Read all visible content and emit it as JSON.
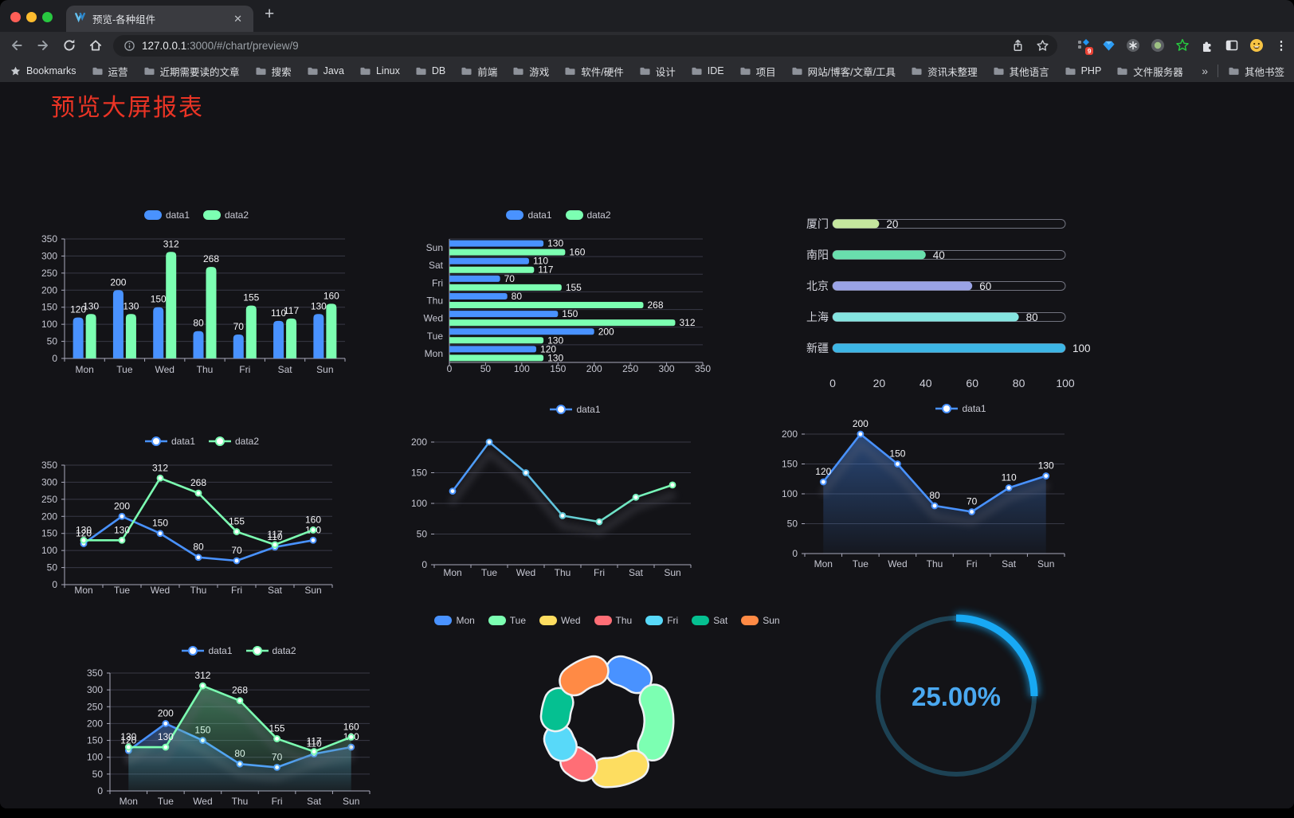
{
  "browser": {
    "tab_title": "预览-各种组件",
    "close_icon": "✕",
    "new_tab_icon": "+",
    "url_host": "127.0.0.1",
    "url_rest": ":3000/#/chart/preview/9",
    "bookmarks_root": "Bookmarks",
    "bookmarks": [
      "运营",
      "近期需要读的文章",
      "搜索",
      "Java",
      "Linux",
      "DB",
      "前端",
      "游戏",
      "软件/硬件",
      "设计",
      "IDE",
      "项目",
      "网站/博客/文章/工具",
      "资讯未整理",
      "其他语言",
      "PHP",
      "文件服务器"
    ],
    "bookmarks_overflow": "»",
    "other_bookmarks": "其他书签",
    "extension_badge": "9",
    "menu_icon": "⋮"
  },
  "page": {
    "title": "预览大屏报表"
  },
  "chart_data": [
    {
      "id": "bar-grouped",
      "type": "bar",
      "categories": [
        "Mon",
        "Tue",
        "Wed",
        "Thu",
        "Fri",
        "Sat",
        "Sun"
      ],
      "series": [
        {
          "name": "data1",
          "color": "#4992ff",
          "values": [
            120,
            200,
            150,
            80,
            70,
            110,
            130
          ]
        },
        {
          "name": "data2",
          "color": "#7cffb2",
          "values": [
            130,
            130,
            312,
            268,
            155,
            117,
            160
          ]
        }
      ],
      "ylim": [
        0,
        350
      ],
      "ytick": 50,
      "show_labels": true,
      "legend_position": "top",
      "grid": true
    },
    {
      "id": "bar-horizontal",
      "type": "hbar",
      "categories": [
        "Mon",
        "Tue",
        "Wed",
        "Thu",
        "Fri",
        "Sat",
        "Sun"
      ],
      "series": [
        {
          "name": "data1",
          "color": "#4992ff",
          "values": [
            120,
            200,
            150,
            80,
            70,
            110,
            130
          ]
        },
        {
          "name": "data2",
          "color": "#7cffb2",
          "values": [
            130,
            130,
            312,
            268,
            155,
            117,
            160
          ]
        }
      ],
      "xlim": [
        0,
        350
      ],
      "xtick": 50,
      "show_labels": true,
      "legend_position": "top",
      "grid": true
    },
    {
      "id": "city-progress",
      "type": "progress",
      "max": 100,
      "axis_ticks": [
        0,
        20,
        40,
        60,
        80,
        100
      ],
      "rows": [
        {
          "label": "厦门",
          "value": 20,
          "color": "#c5e79e"
        },
        {
          "label": "南阳",
          "value": 40,
          "color": "#69dfad"
        },
        {
          "label": "北京",
          "value": 60,
          "color": "#9aa3e6"
        },
        {
          "label": "上海",
          "value": 80,
          "color": "#85e5e1"
        },
        {
          "label": "新疆",
          "value": 100,
          "color": "#3db6e6"
        }
      ]
    },
    {
      "id": "line-two",
      "type": "line",
      "categories": [
        "Mon",
        "Tue",
        "Wed",
        "Thu",
        "Fri",
        "Sat",
        "Sun"
      ],
      "series": [
        {
          "name": "data1",
          "color": "#4992ff",
          "values": [
            120,
            200,
            150,
            80,
            70,
            110,
            130
          ]
        },
        {
          "name": "data2",
          "color": "#7cffb2",
          "values": [
            130,
            130,
            312,
            268,
            155,
            117,
            160
          ]
        }
      ],
      "ylim": [
        0,
        350
      ],
      "ytick": 50,
      "show_labels": true,
      "shadow": false,
      "legend_position": "top",
      "grid": true
    },
    {
      "id": "line-gradient",
      "type": "line",
      "categories": [
        "Mon",
        "Tue",
        "Wed",
        "Thu",
        "Fri",
        "Sat",
        "Sun"
      ],
      "series": [
        {
          "name": "data1",
          "gradient": [
            "#4992ff",
            "#7cffb2"
          ],
          "values": [
            120,
            200,
            150,
            80,
            70,
            110,
            130
          ]
        }
      ],
      "ylim": [
        0,
        200
      ],
      "ytick": 50,
      "show_labels": false,
      "shadow": true,
      "legend_position": "top",
      "grid": true
    },
    {
      "id": "area-single",
      "type": "line",
      "categories": [
        "Mon",
        "Tue",
        "Wed",
        "Thu",
        "Fri",
        "Sat",
        "Sun"
      ],
      "series": [
        {
          "name": "data1",
          "color": "#4992ff",
          "area": true,
          "values": [
            120,
            200,
            150,
            80,
            70,
            110,
            130
          ]
        }
      ],
      "ylim": [
        0,
        200
      ],
      "ytick": 50,
      "show_labels": true,
      "shadow": true,
      "legend_position": "top",
      "grid": true
    },
    {
      "id": "area-double",
      "type": "line",
      "categories": [
        "Mon",
        "Tue",
        "Wed",
        "Thu",
        "Fri",
        "Sat",
        "Sun"
      ],
      "series": [
        {
          "name": "data1",
          "color": "#4992ff",
          "area": true,
          "values": [
            120,
            200,
            150,
            80,
            70,
            110,
            130
          ]
        },
        {
          "name": "data2",
          "color": "#7cffb2",
          "area": true,
          "values": [
            130,
            130,
            312,
            268,
            155,
            117,
            160
          ]
        }
      ],
      "ylim": [
        0,
        350
      ],
      "ytick": 50,
      "show_labels": true,
      "shadow": true,
      "legend_position": "top",
      "grid": true
    },
    {
      "id": "pie-days",
      "type": "pie",
      "legend_position": "top",
      "items": [
        {
          "name": "Mon",
          "value": 120,
          "color": "#4992ff"
        },
        {
          "name": "Tue",
          "value": 200,
          "color": "#7cffb2"
        },
        {
          "name": "Wed",
          "value": 150,
          "color": "#fddd60"
        },
        {
          "name": "Thu",
          "value": 80,
          "color": "#ff6e76"
        },
        {
          "name": "Fri",
          "value": 70,
          "color": "#58d9f9"
        },
        {
          "name": "Sat",
          "value": 110,
          "color": "#05c091"
        },
        {
          "name": "Sun",
          "value": 130,
          "color": "#ff8a45"
        }
      ]
    },
    {
      "id": "gauge-percent",
      "type": "gauge",
      "value": 25,
      "max": 100,
      "label": "25.00%",
      "color": "#18a9f4",
      "track_color": "#1d4254",
      "text_color": "#4aa8f0"
    }
  ]
}
